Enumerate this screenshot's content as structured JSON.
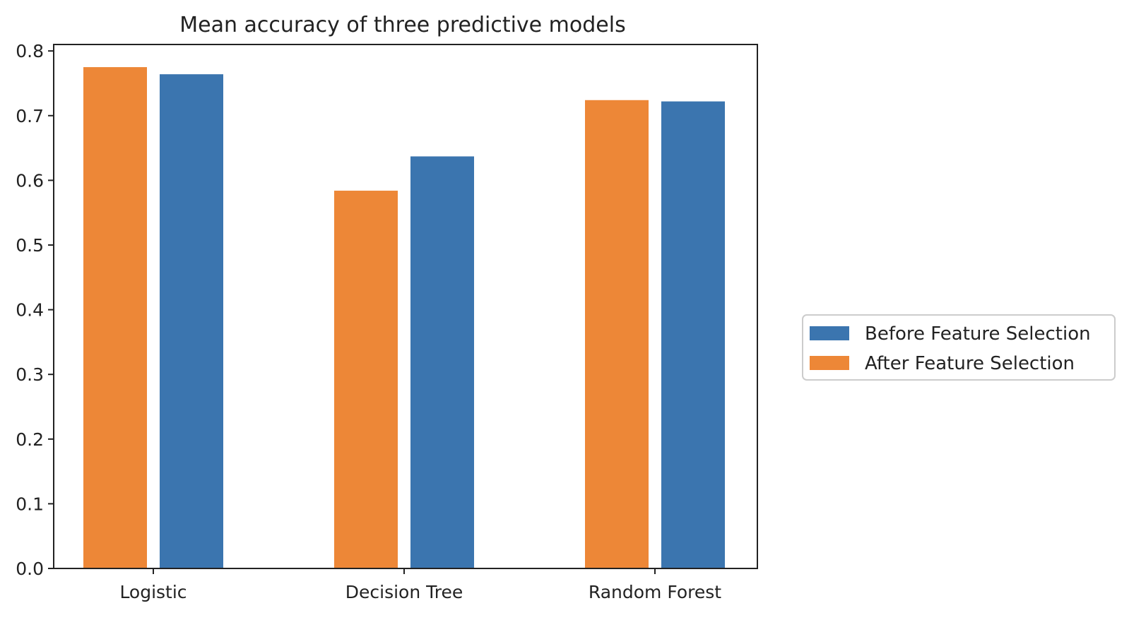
{
  "chart_data": {
    "type": "bar",
    "title": "Mean accuracy of three predictive models",
    "xlabel": "",
    "ylabel": "",
    "categories": [
      "Logistic",
      "Decision Tree",
      "Random Forest"
    ],
    "series": [
      {
        "name": "After Feature Selection",
        "values": [
          0.775,
          0.584,
          0.724
        ],
        "color": "#ED8737"
      },
      {
        "name": "Before Feature Selection",
        "values": [
          0.764,
          0.637,
          0.722
        ],
        "color": "#3B75AF"
      }
    ],
    "ylim": [
      0,
      0.81
    ],
    "yticks": [
      "0.0",
      "0.1",
      "0.2",
      "0.3",
      "0.4",
      "0.5",
      "0.6",
      "0.7",
      "0.8"
    ],
    "grid": false,
    "legend": {
      "position": "right",
      "entries": [
        {
          "label": "Before Feature Selection",
          "color": "#3B75AF"
        },
        {
          "label": "After Feature Selection",
          "color": "#ED8737"
        }
      ]
    }
  }
}
